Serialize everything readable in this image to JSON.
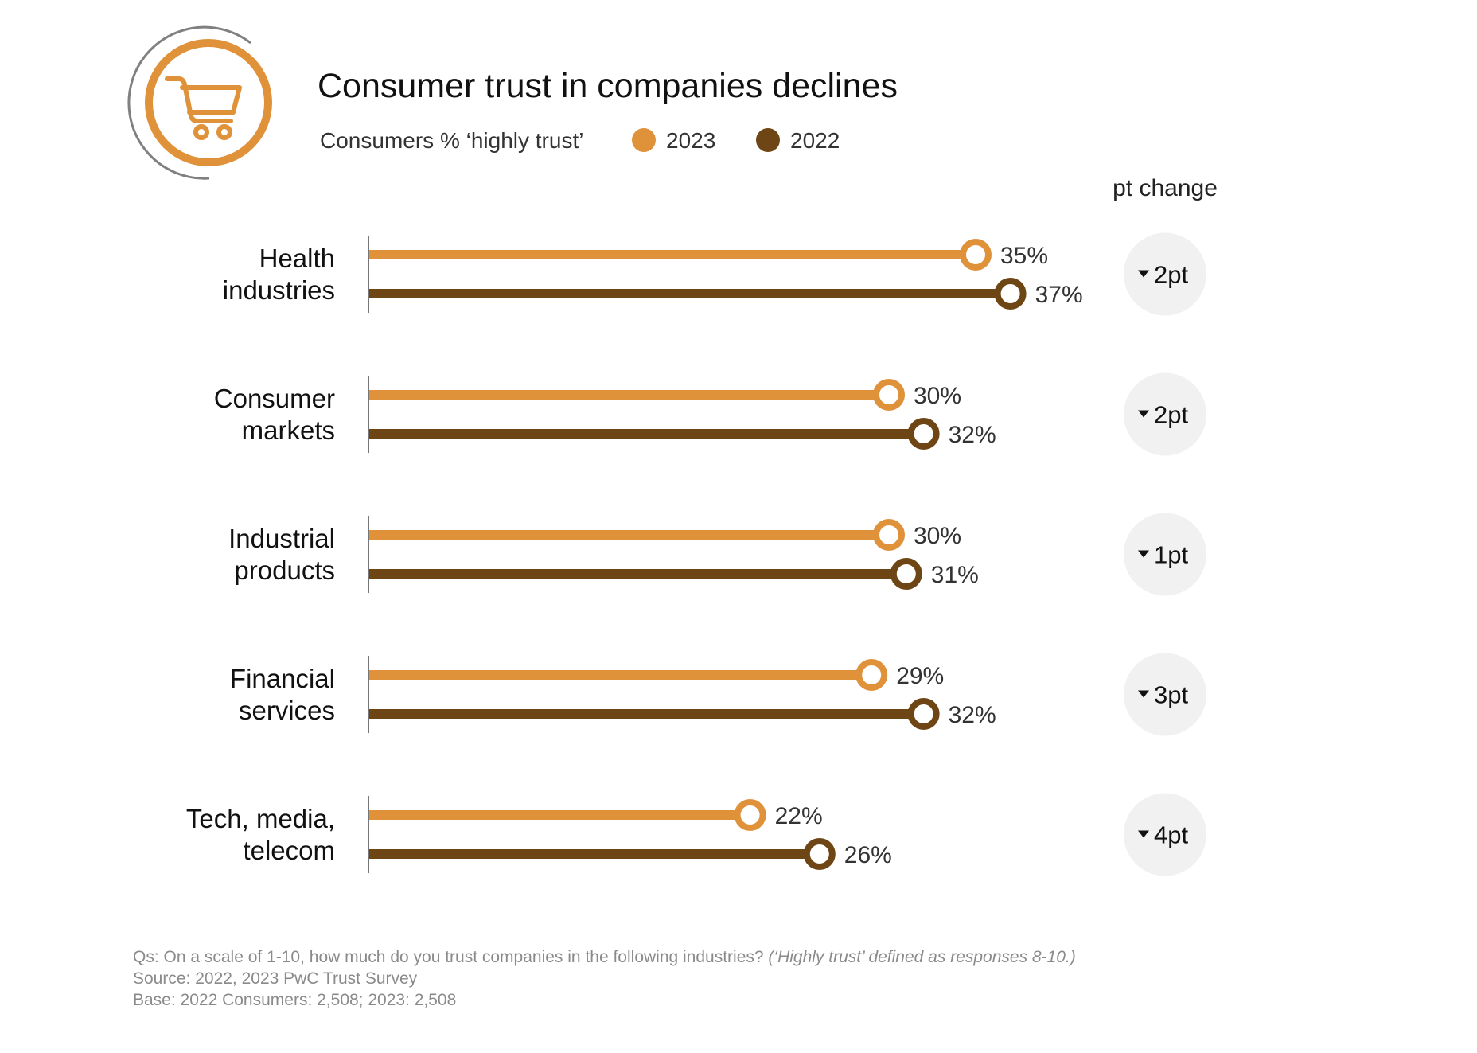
{
  "colors": {
    "y2023": "#E0923A",
    "y2022": "#6E4616",
    "axis": "#777777",
    "change_bg": "#F1F1F1",
    "logo_ring": "#E0923A",
    "logo_arc": "#808080"
  },
  "logo": {
    "icon": "shopping-cart-icon"
  },
  "chart_data": {
    "type": "dumbbell-bar",
    "title": "Consumer trust in companies declines",
    "subtitle": "Consumers % ‘highly trust’",
    "legend": [
      "2023",
      "2022"
    ],
    "legend_placement": "top",
    "change_header": "pt change",
    "xlim": [
      0,
      37
    ],
    "categories": [
      "Health industries",
      "Consumer markets",
      "Industrial products",
      "Financial services",
      "Tech, media, telecom"
    ],
    "category_lines": [
      [
        "Health",
        "industries"
      ],
      [
        "Consumer",
        "markets"
      ],
      [
        "Industrial",
        "products"
      ],
      [
        "Financial",
        "services"
      ],
      [
        "Tech, media,",
        "telecom"
      ]
    ],
    "series": [
      {
        "name": "2023",
        "values": [
          35,
          30,
          30,
          29,
          22
        ],
        "labels": [
          "35%",
          "30%",
          "30%",
          "29%",
          "22%"
        ]
      },
      {
        "name": "2022",
        "values": [
          37,
          32,
          31,
          32,
          26
        ],
        "labels": [
          "37%",
          "32%",
          "31%",
          "32%",
          "26%"
        ]
      }
    ],
    "changes": [
      "2pt",
      "2pt",
      "1pt",
      "3pt",
      "4pt"
    ],
    "change_direction": "down"
  },
  "footer": {
    "question": "Qs: On a scale of 1-10, how much do you trust companies in the following industries?",
    "question_note": "(‘Highly trust’ defined as responses 8-10.)",
    "source": "Source: 2022, 2023 PwC Trust Survey",
    "base": "Base: 2022 Consumers: 2,508; 2023: 2,508"
  }
}
